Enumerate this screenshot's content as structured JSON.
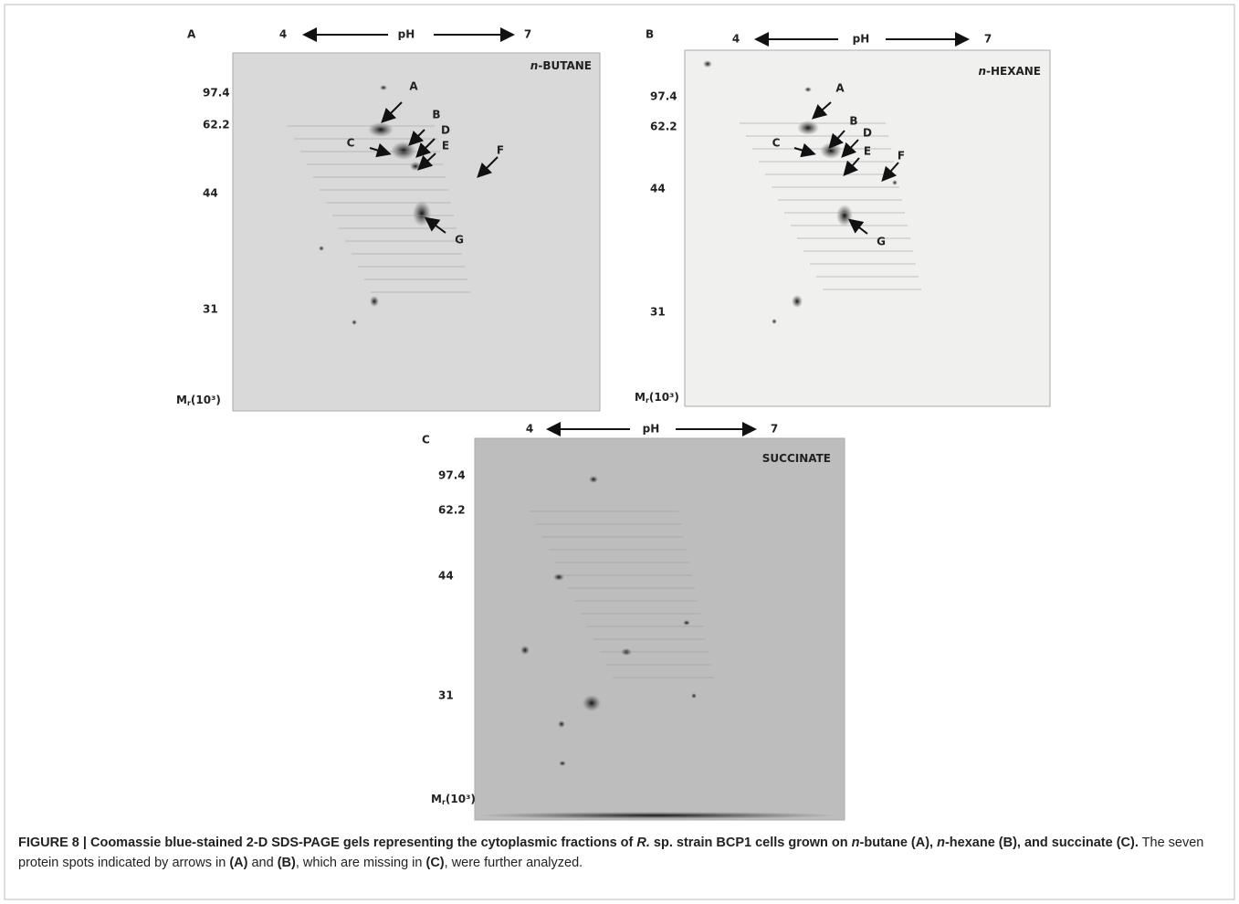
{
  "panels": [
    {
      "letter": "A",
      "ph_low": "4",
      "ph_label": "pH",
      "ph_high": "7",
      "condition": {
        "italic": "n",
        "rest": "-BUTANE"
      },
      "mr_markers": [
        "97.4",
        "62.2",
        "44",
        "31"
      ],
      "mr_label": {
        "base": "M",
        "sub": "r",
        "tail": "(10³)"
      },
      "spots": [
        "A",
        "B",
        "C",
        "D",
        "E",
        "F",
        "G"
      ]
    },
    {
      "letter": "B",
      "ph_low": "4",
      "ph_label": "pH",
      "ph_high": "7",
      "condition": {
        "italic": "n",
        "rest": "-HEXANE"
      },
      "mr_markers": [
        "97.4",
        "62.2",
        "44",
        "31"
      ],
      "mr_label": {
        "base": "M",
        "sub": "r",
        "tail": "(10³)"
      },
      "spots": [
        "A",
        "B",
        "C",
        "D",
        "E",
        "F",
        "G"
      ]
    },
    {
      "letter": "C",
      "ph_low": "4",
      "ph_label": "pH",
      "ph_high": "7",
      "condition": {
        "rest": "SUCCINATE"
      },
      "mr_markers": [
        "97.4",
        "62.2",
        "44",
        "31"
      ],
      "mr_label": {
        "base": "M",
        "sub": "r",
        "tail": "(10³)"
      }
    }
  ],
  "caption": [
    {
      "text": "FIGURE 8 | Coomassie blue-stained 2-D SDS-PAGE gels representing the cytoplasmic fractions of ",
      "style": "b"
    },
    {
      "text": "R.",
      "style": "bi"
    },
    {
      "text": " sp. strain BCP1 cells grown on ",
      "style": "b"
    },
    {
      "text": "n",
      "style": "bi"
    },
    {
      "text": "-butane (A), ",
      "style": "b"
    },
    {
      "text": "n",
      "style": "bi"
    },
    {
      "text": "-hexane (B), and succinate (C).",
      "style": "b"
    },
    {
      "text": " The seven protein spots indicated by arrows in ",
      "style": "r"
    },
    {
      "text": "(A)",
      "style": "b"
    },
    {
      "text": " and ",
      "style": "r"
    },
    {
      "text": "(B)",
      "style": "b"
    },
    {
      "text": ", which are missing in ",
      "style": "r"
    },
    {
      "text": "(C)",
      "style": "b"
    },
    {
      "text": ", were further analyzed.",
      "style": "r"
    }
  ]
}
